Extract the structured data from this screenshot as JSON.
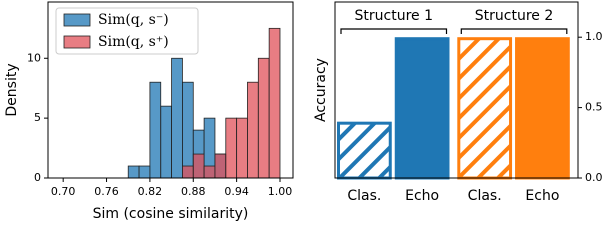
{
  "chart_data": [
    {
      "type": "histogram",
      "xlabel": "Sim (cosine similarity)",
      "ylabel": "Density",
      "bins": [
        0.79,
        0.805,
        0.82,
        0.835,
        0.85,
        0.865,
        0.88,
        0.895,
        0.91,
        0.925,
        0.94,
        0.955,
        0.97,
        0.985,
        1.0
      ],
      "series": [
        {
          "name": "Sim(q, s⁻)",
          "color": "#1f77b4",
          "values": [
            1,
            1,
            8,
            6,
            10,
            8,
            4,
            5,
            2,
            0,
            0,
            0,
            0,
            0
          ]
        },
        {
          "name": "Sim(q, s⁺)",
          "color": "#e0525a",
          "values": [
            0,
            0,
            0,
            0,
            0,
            1,
            2,
            1,
            2,
            5,
            5,
            8,
            10,
            12.5
          ]
        }
      ],
      "xlim": [
        0.679,
        1.018
      ],
      "xticks": [
        {
          "value": 0.7,
          "label": "0.70"
        },
        {
          "value": 0.76,
          "label": "0.76"
        },
        {
          "value": 0.82,
          "label": "0.82"
        },
        {
          "value": 0.88,
          "label": "0.88"
        },
        {
          "value": 0.94,
          "label": "0.94"
        },
        {
          "value": 1.0,
          "label": "1.00"
        }
      ],
      "ylim": [
        0,
        14.7
      ],
      "yticks": [
        0,
        5,
        10
      ],
      "legend": "upper left"
    },
    {
      "type": "bar",
      "ylabel": "Accuracy",
      "categories": [
        "Clas.",
        "Echo",
        "Clas.",
        "Echo"
      ],
      "values": [
        0.4,
        1.0,
        1.0,
        1.0
      ],
      "colors": [
        "#1f77b4",
        "#1f77b4",
        "#ff7f0e",
        "#ff7f0e"
      ],
      "hatch": [
        true,
        false,
        true,
        false
      ],
      "groups": [
        "Structure 1",
        "Structure 2"
      ],
      "ylim": [
        0,
        1.25
      ],
      "yticks": [
        {
          "value": 0,
          "label": "0.0"
        },
        {
          "value": 0.5,
          "label": "0.5"
        },
        {
          "value": 1.0,
          "label": "1.0"
        }
      ],
      "yaxis_side": "right"
    }
  ]
}
